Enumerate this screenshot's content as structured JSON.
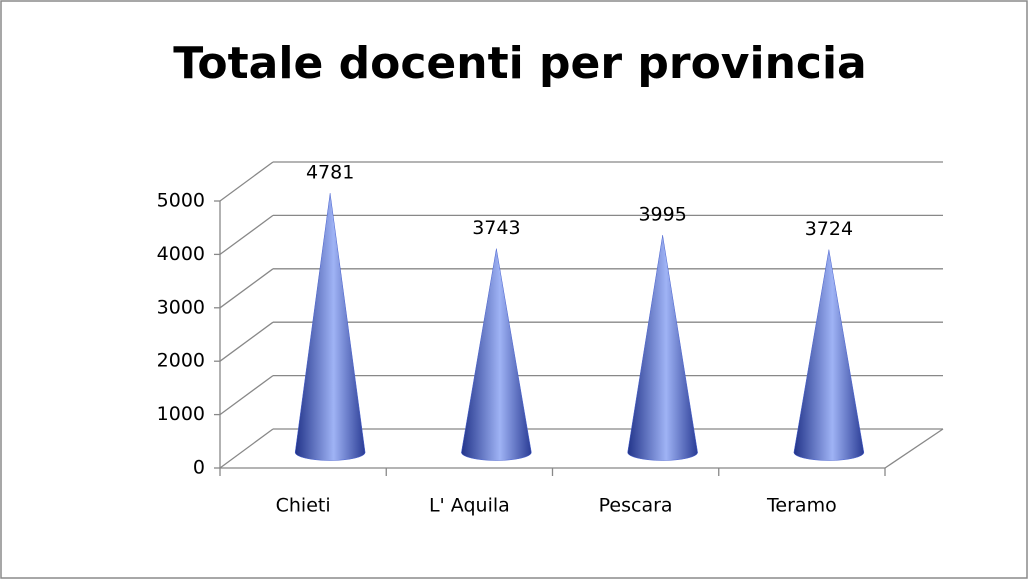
{
  "chart_data": {
    "type": "cone",
    "title": "Totale docenti per provincia",
    "categories": [
      "Chieti",
      "L' Aquila",
      "Pescara",
      "Teramo"
    ],
    "values": [
      4781,
      3743,
      3995,
      3724
    ],
    "color": "#4a63d0",
    "ylim": [
      0,
      5000
    ],
    "yticks": [
      0,
      1000,
      2000,
      3000,
      4000,
      5000
    ],
    "grid": true
  }
}
